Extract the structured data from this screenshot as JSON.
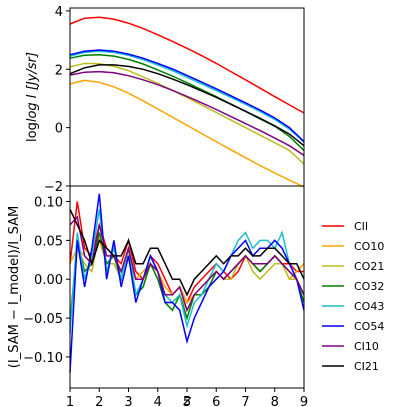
{
  "chart_data": [
    {
      "type": "line",
      "panel": "top",
      "ylabel": "log I [Jy/sr]",
      "xlim": [
        1,
        9
      ],
      "ylim": [
        -2,
        4.1
      ],
      "yticks": [
        "−2",
        "0",
        "2",
        "4"
      ],
      "ytick_values": [
        -2,
        0,
        2,
        4
      ],
      "grid": false,
      "series": [
        {
          "name": "CII",
          "color": "#ff0000",
          "x": [
            1,
            1.5,
            2,
            2.5,
            3,
            3.5,
            4,
            4.5,
            5,
            5.5,
            6,
            6.5,
            7,
            7.5,
            8,
            8.5,
            9
          ],
          "values": [
            3.55,
            3.75,
            3.78,
            3.72,
            3.58,
            3.4,
            3.18,
            2.96,
            2.72,
            2.47,
            2.2,
            1.92,
            1.64,
            1.35,
            1.06,
            0.78,
            0.5
          ]
        },
        {
          "name": "CO10",
          "color": "#ffa500",
          "x": [
            1,
            1.5,
            2,
            2.5,
            3,
            3.5,
            4,
            4.5,
            5,
            5.5,
            6,
            6.5,
            7,
            7.5,
            8,
            8.5,
            9
          ],
          "values": [
            1.5,
            1.62,
            1.55,
            1.4,
            1.18,
            0.92,
            0.64,
            0.36,
            0.08,
            -0.2,
            -0.48,
            -0.76,
            -1.03,
            -1.3,
            -1.55,
            -1.8,
            -2.03
          ]
        },
        {
          "name": "CO21",
          "color": "#bcbd22",
          "x": [
            1,
            1.5,
            2,
            2.5,
            3,
            3.5,
            4,
            4.5,
            5,
            5.5,
            6,
            6.5,
            7,
            7.5,
            8,
            8.5,
            9
          ],
          "values": [
            2.08,
            2.2,
            2.19,
            2.1,
            1.95,
            1.74,
            1.52,
            1.28,
            1.03,
            0.78,
            0.52,
            0.26,
            0.0,
            -0.26,
            -0.52,
            -0.78,
            -1.25
          ]
        },
        {
          "name": "CO32",
          "color": "#008000",
          "x": [
            1,
            1.5,
            2,
            2.5,
            3,
            3.5,
            4,
            4.5,
            5,
            5.5,
            6,
            6.5,
            7,
            7.5,
            8,
            8.5,
            9
          ],
          "values": [
            2.38,
            2.48,
            2.5,
            2.45,
            2.34,
            2.18,
            1.98,
            1.77,
            1.54,
            1.3,
            1.06,
            0.81,
            0.56,
            0.3,
            0.05,
            -0.3,
            -0.78
          ]
        },
        {
          "name": "CO43",
          "color": "#17becf",
          "x": [
            1,
            1.5,
            2,
            2.5,
            3,
            3.5,
            4,
            4.5,
            5,
            5.5,
            6,
            6.5,
            7,
            7.5,
            8,
            8.5,
            9
          ],
          "values": [
            2.45,
            2.58,
            2.62,
            2.58,
            2.48,
            2.33,
            2.15,
            1.95,
            1.73,
            1.5,
            1.27,
            1.04,
            0.8,
            0.55,
            0.28,
            -0.05,
            -0.5
          ]
        },
        {
          "name": "CO54",
          "color": "#0000ff",
          "x": [
            1,
            1.5,
            2,
            2.5,
            3,
            3.5,
            4,
            4.5,
            5,
            5.5,
            6,
            6.5,
            7,
            7.5,
            8,
            8.5,
            9
          ],
          "values": [
            2.5,
            2.62,
            2.66,
            2.62,
            2.52,
            2.38,
            2.2,
            2.01,
            1.79,
            1.56,
            1.33,
            1.09,
            0.85,
            0.6,
            0.33,
            0.0,
            -0.48
          ]
        },
        {
          "name": "CI10",
          "color": "#800080",
          "x": [
            1,
            1.5,
            2,
            2.5,
            3,
            3.5,
            4,
            4.5,
            5,
            5.5,
            6,
            6.5,
            7,
            7.5,
            8,
            8.5,
            9
          ],
          "values": [
            1.8,
            1.9,
            1.92,
            1.88,
            1.78,
            1.64,
            1.47,
            1.28,
            1.07,
            0.85,
            0.62,
            0.38,
            0.14,
            -0.1,
            -0.36,
            -0.62,
            -0.95
          ]
        },
        {
          "name": "CI21",
          "color": "#000000",
          "x": [
            1,
            1.5,
            2,
            2.5,
            3,
            3.5,
            4,
            4.5,
            5,
            5.5,
            6,
            6.5,
            7,
            7.5,
            8,
            8.5,
            9
          ],
          "values": [
            1.85,
            2.05,
            2.15,
            2.15,
            2.1,
            2.0,
            1.85,
            1.67,
            1.47,
            1.26,
            1.04,
            0.8,
            0.56,
            0.32,
            0.06,
            -0.22,
            -0.62
          ]
        }
      ]
    },
    {
      "type": "line",
      "panel": "bottom",
      "xlabel": "z",
      "ylabel": "(I_SAM − I_model)/I_SAM",
      "xlim": [
        1,
        9
      ],
      "ylim": [
        -0.14,
        0.12
      ],
      "xticks": [
        "1",
        "2",
        "3",
        "4",
        "5",
        "6",
        "7",
        "8",
        "9"
      ],
      "xtick_values": [
        1,
        2,
        3,
        4,
        5,
        6,
        7,
        8,
        9
      ],
      "yticks": [
        "−0.10",
        "−0.05",
        "0.00",
        "0.05",
        "0.10"
      ],
      "ytick_values": [
        -0.1,
        -0.05,
        0,
        0.05,
        0.1
      ],
      "grid": false,
      "legend_position": "outside-right",
      "x": [
        1,
        1.25,
        1.5,
        1.75,
        2,
        2.25,
        2.5,
        2.75,
        3,
        3.25,
        3.5,
        3.75,
        4,
        4.25,
        4.5,
        4.75,
        5,
        5.25,
        5.5,
        5.75,
        6,
        6.25,
        6.5,
        6.75,
        7,
        7.25,
        7.5,
        7.75,
        8,
        8.25,
        8.5,
        8.75,
        9
      ],
      "series": [
        {
          "name": "CII",
          "color": "#ff0000",
          "values": [
            0.02,
            0.1,
            0.04,
            0.03,
            0.07,
            0.04,
            0.03,
            0.02,
            0.05,
            0.01,
            0.0,
            0.03,
            0.02,
            0.0,
            -0.02,
            -0.01,
            -0.03,
            -0.01,
            0.0,
            0.01,
            0.02,
            0.01,
            0.0,
            0.01,
            0.03,
            0.02,
            0.01,
            0.02,
            0.03,
            0.02,
            0.02,
            0.01,
            0.01
          ]
        },
        {
          "name": "CO10",
          "color": "#ffa500",
          "values": [
            0.02,
            0.04,
            0.03,
            0.02,
            0.05,
            0.02,
            0.03,
            0.01,
            0.03,
            0.0,
            0.01,
            0.02,
            0.01,
            -0.01,
            -0.02,
            -0.01,
            -0.03,
            -0.02,
            -0.01,
            0.0,
            0.01,
            0.0,
            0.01,
            0.02,
            0.03,
            0.02,
            0.01,
            0.02,
            0.03,
            0.02,
            0.0,
            0.01,
            0.02
          ]
        },
        {
          "name": "CO21",
          "color": "#bcbd22",
          "values": [
            -0.05,
            0.04,
            0.02,
            0.01,
            0.06,
            0.02,
            0.02,
            0.0,
            0.04,
            -0.02,
            -0.01,
            0.02,
            0.0,
            -0.03,
            -0.03,
            -0.02,
            -0.04,
            -0.02,
            -0.02,
            -0.01,
            0.01,
            0.0,
            0.0,
            0.02,
            0.03,
            0.01,
            0.0,
            0.01,
            0.02,
            0.02,
            0.0,
            0.0,
            -0.03
          ]
        },
        {
          "name": "CO32",
          "color": "#008000",
          "values": [
            -0.06,
            0.05,
            0.01,
            0.02,
            0.06,
            0.02,
            0.03,
            0.0,
            0.04,
            -0.02,
            -0.01,
            0.02,
            0.0,
            -0.03,
            -0.04,
            -0.02,
            -0.05,
            -0.02,
            -0.02,
            -0.01,
            0.01,
            0.0,
            0.01,
            0.02,
            0.03,
            0.02,
            0.01,
            0.02,
            0.03,
            0.02,
            0.01,
            0.0,
            -0.03
          ]
        },
        {
          "name": "CO43",
          "color": "#17becf",
          "values": [
            -0.07,
            0.06,
            0.0,
            0.03,
            0.09,
            0.01,
            0.04,
            0.0,
            0.04,
            -0.02,
            0.0,
            0.03,
            0.01,
            -0.02,
            -0.03,
            -0.02,
            -0.06,
            -0.03,
            -0.02,
            0.0,
            0.02,
            0.01,
            0.03,
            0.05,
            0.06,
            0.04,
            0.05,
            0.05,
            0.04,
            0.06,
            0.02,
            0.0,
            -0.02
          ]
        },
        {
          "name": "CO54",
          "color": "#0000ff",
          "values": [
            -0.12,
            0.05,
            -0.01,
            0.04,
            0.11,
            0.0,
            0.05,
            -0.01,
            0.03,
            -0.03,
            0.0,
            0.03,
            0.01,
            -0.03,
            -0.03,
            -0.04,
            -0.08,
            -0.05,
            -0.03,
            -0.01,
            0.0,
            0.01,
            0.03,
            0.04,
            0.05,
            0.03,
            0.04,
            0.04,
            0.05,
            0.04,
            0.02,
            0.0,
            -0.04
          ]
        },
        {
          "name": "CI10",
          "color": "#800080",
          "values": [
            0.07,
            0.08,
            0.03,
            0.02,
            0.07,
            0.03,
            0.03,
            0.01,
            0.04,
            0.0,
            0.0,
            0.02,
            0.01,
            -0.02,
            -0.02,
            -0.01,
            -0.04,
            -0.02,
            -0.01,
            0.0,
            0.01,
            0.0,
            0.01,
            0.02,
            0.03,
            0.02,
            0.02,
            0.02,
            0.03,
            0.02,
            0.01,
            0.0,
            -0.02
          ]
        },
        {
          "name": "CI21",
          "color": "#000000",
          "values": [
            0.09,
            0.07,
            0.05,
            0.02,
            0.05,
            0.04,
            0.03,
            0.03,
            0.05,
            0.02,
            0.02,
            0.04,
            0.04,
            0.02,
            0.0,
            0.0,
            -0.02,
            0.0,
            0.01,
            0.02,
            0.03,
            0.02,
            0.03,
            0.03,
            0.04,
            0.03,
            0.03,
            0.04,
            0.04,
            0.03,
            0.02,
            0.02,
            0.0
          ]
        }
      ]
    }
  ]
}
